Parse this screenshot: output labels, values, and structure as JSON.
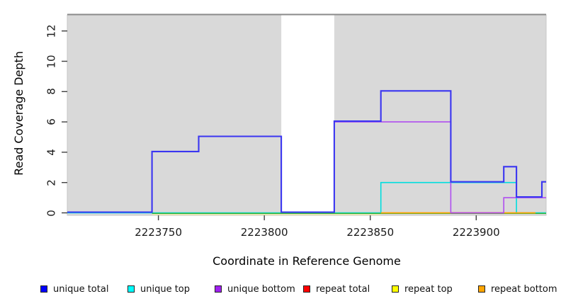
{
  "chart_data": {
    "type": "line",
    "subtype": "step-coverage-plot",
    "title": "",
    "xlabel": "Coordinate in Reference Genome",
    "ylabel": "Read Coverage Depth",
    "xlim": [
      2223707,
      2223933
    ],
    "ylim": [
      0,
      13.1
    ],
    "grid": false,
    "legend_position": "bottom",
    "panel_bg": "#d9d9d9",
    "panel_top_border": "#8a8a8a",
    "x_ticks": [
      "2223750",
      "2223800",
      "2223850",
      "2223900"
    ],
    "x_tick_values": [
      2223750,
      2223800,
      2223850,
      2223900
    ],
    "y_ticks": [
      "0",
      "2",
      "4",
      "6",
      "8",
      "10",
      "12"
    ],
    "y_tick_values": [
      0,
      2,
      4,
      6,
      8,
      10,
      12
    ],
    "gap_region": {
      "start": 2223808,
      "end": 2223833,
      "fill": "#ffffff",
      "note": "white unmasked-background band where unique total coverage drops to 0"
    },
    "series": [
      {
        "name": "repeat top",
        "color": "#efe9ad",
        "lw": 1.4,
        "dy": 2.5,
        "steps": [
          [
            2223747,
            0
          ]
        ],
        "end": 2223855
      },
      {
        "name": "unique top",
        "color": "#00dede",
        "lw": 1.6,
        "dy": 0,
        "steps": [
          [
            2223707,
            0
          ],
          [
            2223855,
            2
          ],
          [
            2223919,
            0
          ]
        ],
        "end": 2223933
      },
      {
        "name": "baseline-green",
        "color": "#35b535",
        "lw": 1.4,
        "dy": 0.8,
        "steps": [
          [
            2223747,
            0
          ]
        ],
        "end": 2223933
      },
      {
        "name": "repeat bottom",
        "color": "#ffa200",
        "lw": 1.8,
        "dy": 0,
        "steps": [
          [
            2223855,
            0
          ]
        ],
        "end": 2223928
      },
      {
        "name": "repeat total",
        "color": "#e7385e",
        "lw": 1.8,
        "dy": 0,
        "steps": [
          [
            2223888,
            0
          ]
        ],
        "end": 2223913
      },
      {
        "name": "unique bottom",
        "color": "#b04ef0",
        "lw": 1.6,
        "dy": 0,
        "steps": [
          [
            2223833,
            6
          ],
          [
            2223888,
            0
          ],
          [
            2223913,
            1
          ]
        ],
        "end": 2223933
      },
      {
        "name": "unique total",
        "color": "#3a35f1",
        "lw": 2.1,
        "dy": -1,
        "steps": [
          [
            2223707,
            0
          ],
          [
            2223747,
            4
          ],
          [
            2223769,
            5
          ],
          [
            2223808,
            0
          ],
          [
            2223833,
            6
          ],
          [
            2223855,
            8
          ],
          [
            2223888,
            2
          ],
          [
            2223913,
            3
          ],
          [
            2223919,
            1
          ],
          [
            2223931,
            2
          ]
        ],
        "end": 2223933
      }
    ],
    "notes": "Step plot of read coverage depth vs genome coordinate. Depth segments for unique total: 0 (2223707-2223747), 4 (to 2223769), 5 (to 2223808), 0 across white band (to 2223833), 6 (to 2223855), 8 (to 2223888), 2 (to 2223913), 3 (to 2223919), 1 (to 2223931), 2 (to 2223933). Unique top = 2 from 2223855-2223919. Unique bottom = 6 from 2223833-2223888 then 1 from 2223913. Repeat total/top/bottom remain at depth 0. An unlabeled green zero baseline runs from 2223747 to the right edge."
  },
  "legend": {
    "items": [
      {
        "label": "unique total",
        "color": "#0000ff"
      },
      {
        "label": "unique top",
        "color": "#00ffff"
      },
      {
        "label": "unique bottom",
        "color": "#a020f0"
      },
      {
        "label": "repeat total",
        "color": "#ff0000"
      },
      {
        "label": "repeat top",
        "color": "#ffff00"
      },
      {
        "label": "repeat bottom",
        "color": "#ffa500"
      }
    ]
  }
}
